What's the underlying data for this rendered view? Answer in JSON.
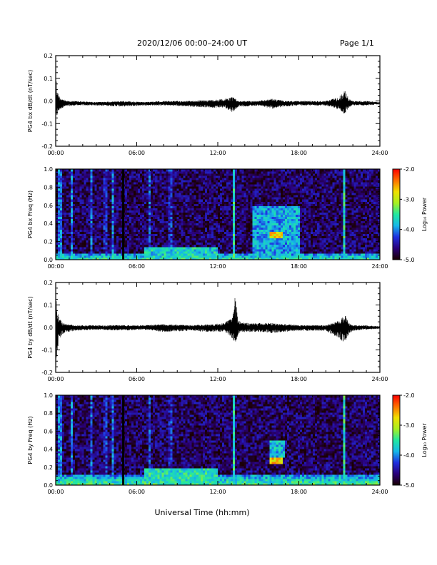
{
  "header": {
    "title": "2020/12/06  00:00–24:00 UT",
    "page": "Page 1/1"
  },
  "footer": {
    "xlabel": "Universal Time (hh:mm)"
  },
  "colors": {
    "trace": "#000000",
    "colormap": [
      "#1a0000",
      "#2a007a",
      "#1f2fe0",
      "#16b8e8",
      "#22e8a0",
      "#a8f020",
      "#f0e000",
      "#ff7000",
      "#ff0000"
    ]
  },
  "chart_data": [
    {
      "type": "line",
      "ylabel": "PG4 bx dB/dt (nT/sec)",
      "xlim": [
        0,
        24
      ],
      "ylim": [
        -0.2,
        0.2
      ],
      "x_tick_labels": [
        "00:00",
        "06:00",
        "12:00",
        "18:00",
        "24:00"
      ],
      "y_tick_labels": [
        "-0.2",
        "-0.1",
        "0.0",
        "0.1",
        "0.2"
      ],
      "series": [
        {
          "baseline": -0.01,
          "x": [
            0.0,
            0.05,
            0.1,
            0.2,
            0.3,
            0.5,
            0.8,
            1.5,
            3.0,
            5.0,
            6.5,
            8.0,
            10.0,
            11.5,
            12.5,
            13.1,
            13.3,
            13.5,
            14.0,
            15.0,
            16.0,
            17.0,
            18.0,
            19.0,
            20.0,
            21.0,
            21.4,
            21.7,
            22.0,
            23.0,
            24.0
          ],
          "max": [
            0.08,
            0.1,
            0.05,
            0.03,
            0.02,
            0.01,
            0.0,
            0.0,
            -0.005,
            0.0,
            -0.005,
            0.0,
            0.0,
            0.005,
            0.01,
            0.02,
            0.01,
            0.0,
            0.0,
            0.0,
            0.01,
            0.0,
            0.0,
            0.0,
            0.0,
            0.02,
            0.05,
            0.01,
            0.0,
            0.0,
            -0.005
          ],
          "min": [
            -0.11,
            -0.09,
            -0.07,
            -0.05,
            -0.04,
            -0.03,
            -0.025,
            -0.02,
            -0.02,
            -0.025,
            -0.02,
            -0.02,
            -0.025,
            -0.03,
            -0.03,
            -0.05,
            -0.04,
            -0.025,
            -0.025,
            -0.02,
            -0.035,
            -0.025,
            -0.02,
            -0.02,
            -0.02,
            -0.04,
            -0.06,
            -0.03,
            -0.02,
            -0.02,
            -0.015
          ]
        }
      ]
    },
    {
      "type": "heatmap",
      "ylabel": "PG4 bx Freq (Hz)",
      "colorbar_label": "Log₁₀ Power",
      "xlim": [
        0,
        24
      ],
      "ylim": [
        0,
        1
      ],
      "clim": [
        -5.0,
        -2.0
      ],
      "x_tick_labels": [
        "00:00",
        "06:00",
        "12:00",
        "18:00",
        "24:00"
      ],
      "y_tick_labels": [
        "0.0",
        "0.2",
        "0.4",
        "0.6",
        "0.8",
        "1.0"
      ],
      "colorbar_tick_labels": [
        "-5.0",
        "-4.0",
        "-3.0",
        "-2.0"
      ],
      "gap_hours": [
        5.0
      ],
      "background_log_power": -4.7,
      "low_frequency_band": {
        "below_hz": 0.08,
        "log_power": -3.5
      },
      "broadband_events": [
        {
          "t": 0.3,
          "log_power": -3.9
        },
        {
          "t": 1.2,
          "log_power": -4.1
        },
        {
          "t": 2.6,
          "log_power": -4.1
        },
        {
          "t": 3.7,
          "log_power": -4.2
        },
        {
          "t": 4.2,
          "log_power": -4.0
        },
        {
          "t": 7.0,
          "log_power": -4.1
        },
        {
          "t": 8.5,
          "log_power": -4.2
        },
        {
          "t": 13.2,
          "log_power": -3.6
        },
        {
          "t": 21.4,
          "log_power": -3.5
        }
      ],
      "enhanced_regions": [
        {
          "t_start": 14.5,
          "t_end": 18.0,
          "f_min": 0.0,
          "f_max": 0.6,
          "log_power": -3.9
        },
        {
          "t_start": 15.8,
          "t_end": 16.8,
          "f_min": 0.23,
          "f_max": 0.32,
          "log_power": -2.8
        },
        {
          "t_start": 6.5,
          "t_end": 12.0,
          "f_min": 0.0,
          "f_max": 0.15,
          "log_power": -3.7
        }
      ]
    },
    {
      "type": "line",
      "ylabel": "PG4 by dB/dt (nT/sec)",
      "xlim": [
        0,
        24
      ],
      "ylim": [
        -0.2,
        0.2
      ],
      "x_tick_labels": [
        "00:00",
        "06:00",
        "12:00",
        "18:00",
        "24:00"
      ],
      "y_tick_labels": [
        "-0.2",
        "-0.1",
        "0.0",
        "0.1",
        "0.2"
      ],
      "series": [
        {
          "baseline": 0.0,
          "x": [
            0.0,
            0.05,
            0.1,
            0.2,
            0.3,
            0.5,
            0.8,
            1.5,
            3.0,
            5.0,
            6.5,
            8.0,
            10.0,
            11.5,
            12.5,
            13.1,
            13.3,
            13.5,
            14.0,
            15.0,
            16.0,
            17.0,
            18.0,
            19.0,
            20.0,
            21.0,
            21.4,
            21.7,
            22.0,
            23.0,
            24.0
          ],
          "max": [
            0.1,
            0.12,
            0.08,
            0.05,
            0.04,
            0.02,
            0.015,
            0.01,
            0.01,
            0.01,
            0.01,
            0.015,
            0.01,
            0.015,
            0.02,
            0.05,
            0.15,
            0.03,
            0.02,
            0.02,
            0.02,
            0.015,
            0.01,
            0.01,
            0.01,
            0.03,
            0.06,
            0.02,
            0.01,
            0.01,
            0.005
          ],
          "min": [
            -0.2,
            -0.18,
            -0.12,
            -0.07,
            -0.05,
            -0.03,
            -0.02,
            -0.015,
            -0.01,
            -0.015,
            -0.01,
            -0.02,
            -0.015,
            -0.02,
            -0.02,
            -0.05,
            -0.08,
            -0.03,
            -0.02,
            -0.02,
            -0.025,
            -0.02,
            -0.015,
            -0.015,
            -0.015,
            -0.05,
            -0.07,
            -0.03,
            -0.015,
            -0.01,
            -0.005
          ]
        }
      ]
    },
    {
      "type": "heatmap",
      "ylabel": "PG4 by Freq (Hz)",
      "colorbar_label": "Log₁₀ Power",
      "xlim": [
        0,
        24
      ],
      "ylim": [
        0,
        1
      ],
      "clim": [
        -5.0,
        -2.0
      ],
      "x_tick_labels": [
        "00:00",
        "06:00",
        "12:00",
        "18:00",
        "24:00"
      ],
      "y_tick_labels": [
        "0.0",
        "0.2",
        "0.4",
        "0.6",
        "0.8",
        "1.0"
      ],
      "colorbar_tick_labels": [
        "-5.0",
        "-4.0",
        "-3.0",
        "-2.0"
      ],
      "gap_hours": [
        5.0
      ],
      "background_log_power": -4.7,
      "low_frequency_band": {
        "below_hz": 0.12,
        "log_power": -3.4
      },
      "broadband_events": [
        {
          "t": 0.3,
          "log_power": -3.9
        },
        {
          "t": 1.2,
          "log_power": -4.1
        },
        {
          "t": 2.6,
          "log_power": -4.1
        },
        {
          "t": 3.7,
          "log_power": -4.2
        },
        {
          "t": 4.2,
          "log_power": -4.0
        },
        {
          "t": 7.0,
          "log_power": -4.1
        },
        {
          "t": 8.5,
          "log_power": -4.2
        },
        {
          "t": 13.2,
          "log_power": -3.6
        },
        {
          "t": 21.4,
          "log_power": -3.5
        }
      ],
      "enhanced_regions": [
        {
          "t_start": 15.8,
          "t_end": 17.0,
          "f_min": 0.3,
          "f_max": 0.5,
          "log_power": -3.8
        },
        {
          "t_start": 15.8,
          "t_end": 16.8,
          "f_min": 0.23,
          "f_max": 0.3,
          "log_power": -2.7
        },
        {
          "t_start": 6.5,
          "t_end": 12.0,
          "f_min": 0.0,
          "f_max": 0.18,
          "log_power": -3.6
        }
      ]
    }
  ]
}
